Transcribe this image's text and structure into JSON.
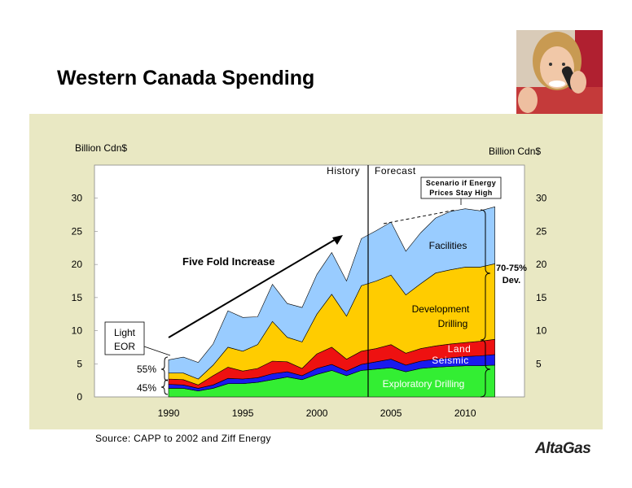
{
  "slide": {
    "title": "Western Canada Spending",
    "source": "Source: CAPP to 2002 and Ziff Energy",
    "logo": "AltaGas"
  },
  "colors": {
    "panel": "#e9e8c3",
    "exploratory": "#33ee33",
    "seismic": "#1a1aee",
    "land": "#ee1111",
    "development": "#ffcc00",
    "facilities": "#99ccff"
  },
  "chart_data": {
    "type": "area",
    "stacked": true,
    "ylabel_left": "Billion Cdn$",
    "ylabel_right": "Billion Cdn$",
    "ylim": [
      0,
      35
    ],
    "yticks_left": [
      0,
      5,
      10,
      15,
      20,
      25,
      30
    ],
    "yticks_right": [
      5,
      10,
      15,
      20,
      25,
      30
    ],
    "xlim": [
      1985,
      2014
    ],
    "xticks": [
      1990,
      1995,
      2000,
      2005,
      2010
    ],
    "history_label": "History",
    "forecast_label": "Forecast",
    "divider_year": 2004,
    "x": [
      1990,
      1991,
      1992,
      1993,
      1994,
      1995,
      1996,
      1997,
      1998,
      1999,
      2000,
      2001,
      2002,
      2003,
      2004,
      2005,
      2006,
      2007,
      2008,
      2009,
      2010,
      2011,
      2012
    ],
    "series": [
      {
        "name": "Exploratory Drilling",
        "color_key": "exploratory",
        "values": [
          1.3,
          1.3,
          0.9,
          1.3,
          2.0,
          2.0,
          2.2,
          2.6,
          3.0,
          2.6,
          3.4,
          4.0,
          3.2,
          4.0,
          4.2,
          4.4,
          3.8,
          4.3,
          4.5,
          4.6,
          4.7,
          4.7,
          4.8
        ]
      },
      {
        "name": "Seismic",
        "color_key": "seismic",
        "values": [
          0.6,
          0.5,
          0.4,
          0.5,
          0.8,
          0.7,
          0.7,
          0.9,
          0.8,
          0.6,
          0.9,
          0.9,
          0.7,
          0.9,
          1.1,
          1.3,
          1.0,
          1.1,
          1.2,
          1.3,
          1.4,
          1.5,
          1.6
        ]
      },
      {
        "name": "Land",
        "color_key": "land",
        "values": [
          0.8,
          0.8,
          0.5,
          1.4,
          1.7,
          1.2,
          1.4,
          1.9,
          1.5,
          1.1,
          2.2,
          2.6,
          1.8,
          2.0,
          2.0,
          2.2,
          1.8,
          1.9,
          2.0,
          2.1,
          2.1,
          2.2,
          2.3
        ]
      },
      {
        "name": "Development Drilling",
        "color_key": "development",
        "values": [
          0.9,
          1.0,
          0.9,
          1.6,
          3.0,
          3.0,
          3.6,
          6.0,
          3.7,
          4.0,
          6.0,
          8.0,
          6.5,
          9.9,
          10.2,
          10.5,
          8.8,
          9.8,
          11.0,
          11.2,
          11.4,
          11.2,
          11.4
        ]
      },
      {
        "name": "Facilities",
        "color_key": "facilities",
        "values": [
          2.0,
          2.4,
          2.5,
          3.2,
          5.5,
          5.1,
          4.2,
          5.6,
          5.1,
          5.2,
          6.0,
          6.3,
          5.3,
          7.1,
          7.6,
          8.0,
          6.6,
          7.7,
          8.3,
          8.8,
          8.8,
          8.5,
          8.6
        ]
      }
    ],
    "annotations": {
      "five_fold": "Five Fold Increase",
      "scenario": [
        "Scenario if Energy",
        "Prices Stay High"
      ],
      "light": "Light",
      "eor": "EOR",
      "pct55": "55%",
      "pct45": "45%",
      "dev_pct": "70-75%",
      "dev": "Dev.",
      "facilities": "Facilities",
      "development1": "Development",
      "development2": "Drilling",
      "land": "Land",
      "seismic": "Seismic",
      "exploratory": "Exploratory Drilling"
    }
  }
}
